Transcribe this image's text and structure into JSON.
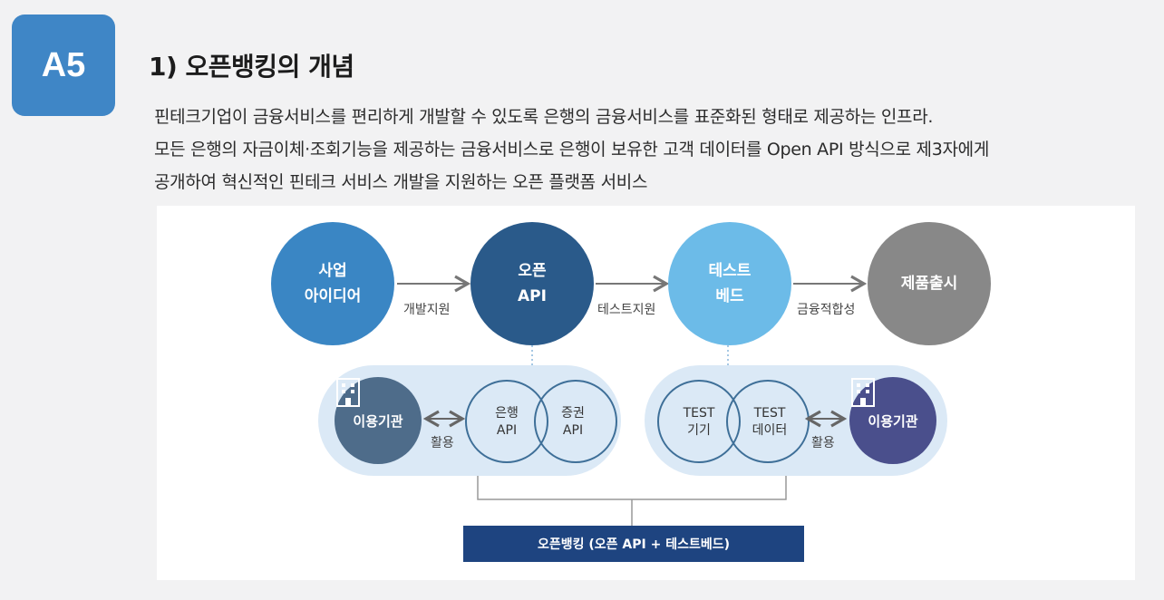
{
  "badge": "A5",
  "title": "1) 오픈뱅킹의 개념",
  "description": [
    "핀테크기업이 금융서비스를 편리하게 개발할 수 있도록 은행의 금융서비스를 표준화된 형태로 제공하는 인프라.",
    "모든 은행의 자금이체·조회기능을 제공하는 금융서비스로 은행이 보유한 고객 데이터를 Open API 방식으로 제3자에게",
    "공개하여 혁신적인 핀테크 서비스 개발을 지원하는 오픈 플랫폼 서비스"
  ],
  "colors": {
    "badge": "#3f86c6",
    "idea": "#3a86c4",
    "open_api": "#2a5a8a",
    "testbed": "#6cbbe8",
    "release": "#888888",
    "inst_left": "#4e6c8a",
    "inst_right": "#4a4f8c",
    "pill": "#dbe9f6",
    "bar": "#1e4480"
  },
  "diagram": {
    "steps": [
      {
        "line1": "사업",
        "line2": "아이디어"
      },
      {
        "line1": "오픈",
        "line2": "API"
      },
      {
        "line1": "테스트",
        "line2": "베드"
      },
      {
        "line1": "제품출시",
        "line2": ""
      }
    ],
    "arrows": [
      "개발지원",
      "테스트지원",
      "금융적합성"
    ],
    "left_group": {
      "institution": "이용기관",
      "use": "활용",
      "venn": [
        {
          "line1": "은행",
          "line2": "API"
        },
        {
          "line1": "증권",
          "line2": "API"
        }
      ]
    },
    "right_group": {
      "institution": "이용기관",
      "use": "활용",
      "venn": [
        {
          "line1": "TEST",
          "line2": "기기"
        },
        {
          "line1": "TEST",
          "line2": "데이터"
        }
      ]
    },
    "bottom_label": "오픈뱅킹 (오픈 API + 테스트베드)"
  }
}
